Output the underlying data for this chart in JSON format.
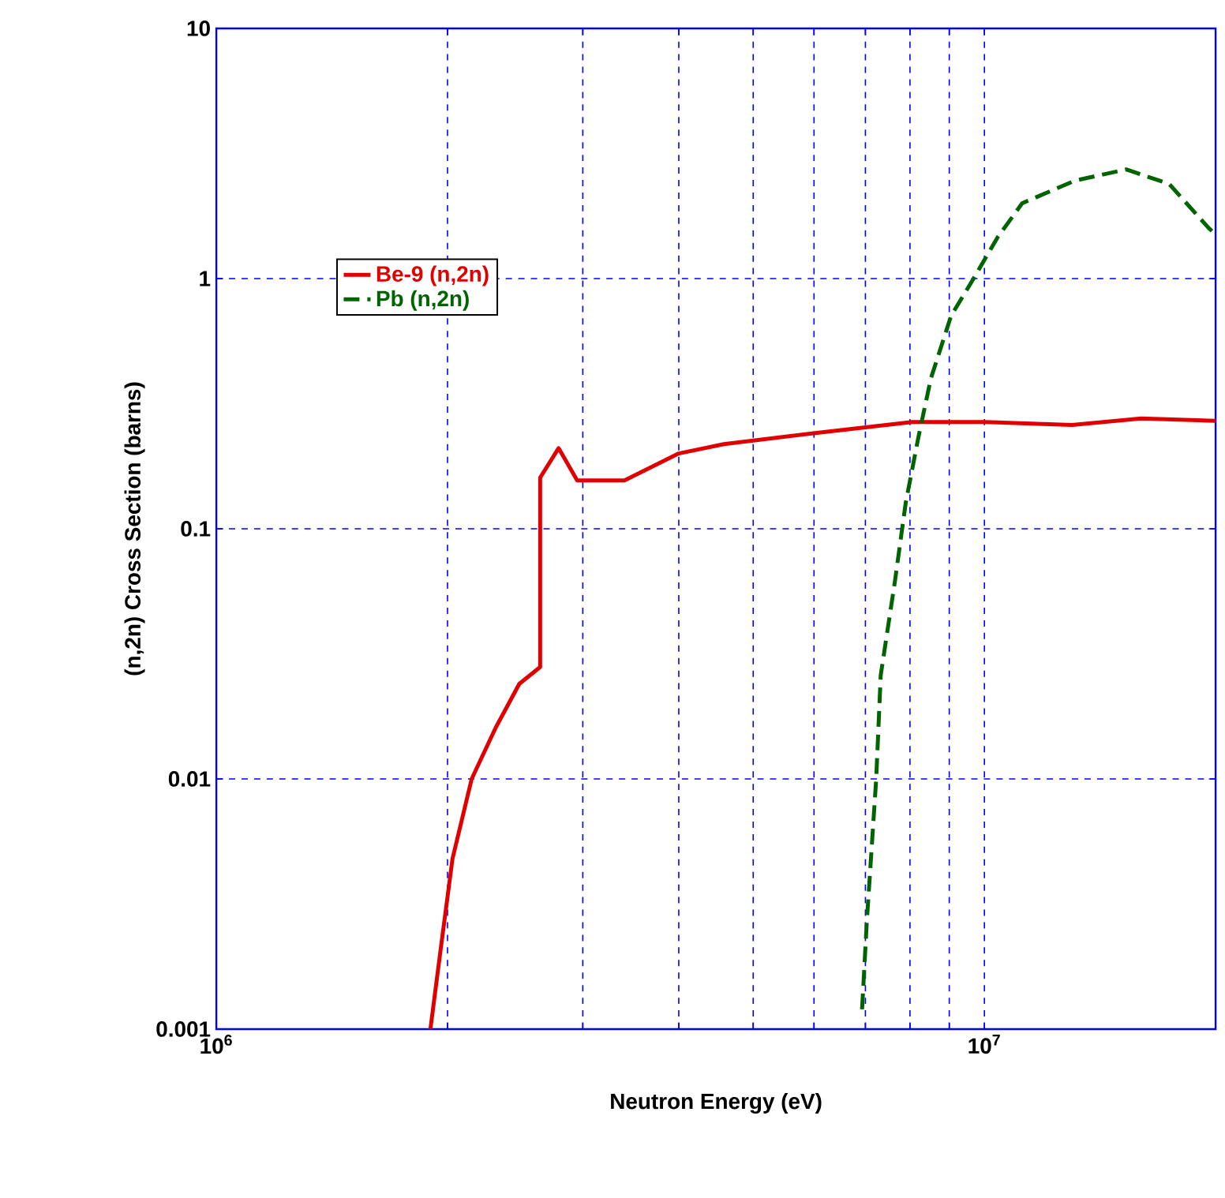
{
  "chart_data": {
    "type": "line",
    "xlabel": "Neutron Energy (eV)",
    "ylabel": "(n,2n) Cross Section (barns)",
    "log": "xy",
    "grid": true,
    "legend": "top left",
    "xlim": [
      1000000,
      20000000
    ],
    "ylim": [
      0.001,
      10
    ],
    "xticks": [
      {
        "value": 1000000,
        "label": "10$^{6}$"
      },
      {
        "value": 2000000,
        "label": null
      },
      {
        "value": 3000000,
        "label": null
      },
      {
        "value": 4000000,
        "label": null
      },
      {
        "value": 5000000,
        "label": null
      },
      {
        "value": 6000000,
        "label": null
      },
      {
        "value": 7000000,
        "label": null
      },
      {
        "value": 8000000,
        "label": null
      },
      {
        "value": 9000000,
        "label": null
      },
      {
        "value": 10000000,
        "label": "10$^{7}$"
      }
    ],
    "yticks": [
      0.001,
      0.01,
      0.1,
      1,
      10
    ],
    "series": [
      {
        "name": "Be-9 (n,2n)",
        "color": "#e00000",
        "line_style": "solid",
        "x": [
          1900000,
          1960000,
          2030000,
          2150000,
          2310000,
          2480000,
          2640000,
          2640000,
          2790000,
          2950000,
          3400000,
          4000000,
          4580000,
          5930000,
          8050000,
          10000000,
          13000000,
          16000000,
          20000000
        ],
        "values": [
          0.001,
          0.0021,
          0.0048,
          0.01,
          0.016,
          0.024,
          0.028,
          0.16,
          0.21,
          0.156,
          0.156,
          0.2,
          0.218,
          0.24,
          0.267,
          0.267,
          0.26,
          0.276,
          0.27
        ]
      },
      {
        "name": "Pb (n,2n)",
        "color": "#006400",
        "line_style": "dashed",
        "x": [
          6930000,
          7030000,
          7230000,
          7330000,
          7650000,
          7900000,
          8200000,
          8520000,
          9050000,
          9680000,
          10400000,
          11200000,
          13100000,
          15300000,
          17400000,
          19600000,
          20000000
        ],
        "values": [
          0.0012,
          0.0027,
          0.01,
          0.026,
          0.062,
          0.127,
          0.23,
          0.4,
          0.71,
          1.0,
          1.46,
          2.0,
          2.46,
          2.73,
          2.39,
          1.59,
          1.5
        ]
      }
    ]
  }
}
